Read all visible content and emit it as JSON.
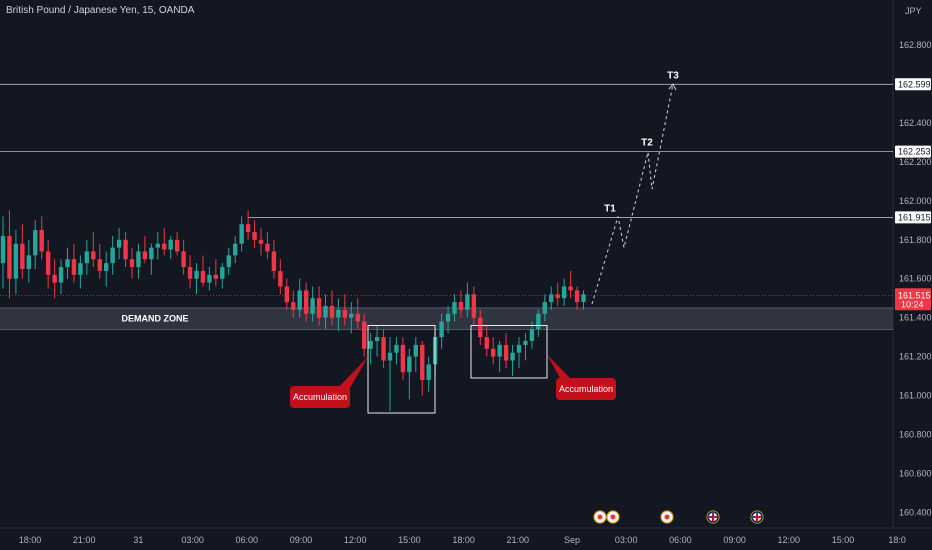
{
  "header": {
    "symbol_line": "British Pound / Japanese Yen, 15, OANDA"
  },
  "chart_data": {
    "type": "candlestick",
    "title": "British Pound / Japanese Yen, 15, OANDA",
    "currency_label": "JPY",
    "y_ticks": [
      "162.800",
      "162.600",
      "162.400",
      "162.200",
      "162.000",
      "161.800",
      "161.600",
      "161.400",
      "161.200",
      "161.000",
      "160.800",
      "160.600",
      "160.400"
    ],
    "y_min": 160.35,
    "y_max": 162.95,
    "x_ticks": [
      "18:00",
      "21:00",
      "31",
      "03:00",
      "06:00",
      "09:00",
      "12:00",
      "15:00",
      "18:00",
      "21:00",
      "Sep",
      "03:00",
      "06:00",
      "09:00",
      "12:00",
      "15:00",
      "18:0"
    ],
    "levels": [
      {
        "label": "162.599",
        "value": 162.599
      },
      {
        "label": "162.253",
        "value": 162.253
      },
      {
        "label": "161.915",
        "value": 161.915
      }
    ],
    "current_price": {
      "label": "161.515",
      "value": 161.515,
      "countdown": "10:24",
      "color": "#f23645"
    },
    "demand_zone": {
      "label": "DEMAND ZONE",
      "top": 161.45,
      "bottom": 161.34
    },
    "targets": [
      {
        "label": "T1",
        "value": 161.915
      },
      {
        "label": "T2",
        "value": 162.253
      },
      {
        "label": "T3",
        "value": 162.599
      }
    ],
    "projection_path": [
      161.47,
      161.92,
      161.76,
      162.25,
      162.06,
      162.6
    ],
    "accumulations": [
      {
        "label": "Accumulation",
        "box_top": 161.36,
        "box_bottom": 160.91
      },
      {
        "label": "Accumulation",
        "box_top": 161.36,
        "box_bottom": 161.09
      }
    ],
    "candles_ohlc": [
      [
        161.68,
        161.92,
        161.55,
        161.82
      ],
      [
        161.82,
        161.95,
        161.5,
        161.6
      ],
      [
        161.6,
        161.85,
        161.52,
        161.78
      ],
      [
        161.78,
        161.88,
        161.6,
        161.65
      ],
      [
        161.65,
        161.8,
        161.58,
        161.72
      ],
      [
        161.72,
        161.9,
        161.65,
        161.85
      ],
      [
        161.85,
        161.92,
        161.7,
        161.74
      ],
      [
        161.74,
        161.8,
        161.55,
        161.62
      ],
      [
        161.62,
        161.7,
        161.5,
        161.58
      ],
      [
        161.58,
        161.7,
        161.52,
        161.66
      ],
      [
        161.66,
        161.76,
        161.6,
        161.7
      ],
      [
        161.7,
        161.78,
        161.58,
        161.62
      ],
      [
        161.62,
        161.72,
        161.55,
        161.68
      ],
      [
        161.68,
        161.8,
        161.62,
        161.74
      ],
      [
        161.74,
        161.84,
        161.66,
        161.7
      ],
      [
        161.7,
        161.78,
        161.6,
        161.64
      ],
      [
        161.64,
        161.74,
        161.56,
        161.68
      ],
      [
        161.68,
        161.82,
        161.62,
        161.76
      ],
      [
        161.76,
        161.86,
        161.7,
        161.8
      ],
      [
        161.8,
        161.84,
        161.66,
        161.7
      ],
      [
        161.7,
        161.76,
        161.6,
        161.66
      ],
      [
        161.66,
        161.78,
        161.6,
        161.74
      ],
      [
        161.74,
        161.82,
        161.68,
        161.7
      ],
      [
        161.7,
        161.78,
        161.62,
        161.76
      ],
      [
        161.76,
        161.84,
        161.7,
        161.78
      ],
      [
        161.78,
        161.86,
        161.72,
        161.75
      ],
      [
        161.75,
        161.82,
        161.7,
        161.8
      ],
      [
        161.8,
        161.84,
        161.72,
        161.74
      ],
      [
        161.74,
        161.8,
        161.62,
        161.66
      ],
      [
        161.66,
        161.72,
        161.55,
        161.6
      ],
      [
        161.6,
        161.68,
        161.52,
        161.64
      ],
      [
        161.64,
        161.72,
        161.56,
        161.58
      ],
      [
        161.58,
        161.66,
        161.54,
        161.62
      ],
      [
        161.62,
        161.7,
        161.56,
        161.6
      ],
      [
        161.6,
        161.68,
        161.55,
        161.66
      ],
      [
        161.66,
        161.76,
        161.62,
        161.72
      ],
      [
        161.72,
        161.82,
        161.68,
        161.78
      ],
      [
        161.78,
        161.92,
        161.74,
        161.88
      ],
      [
        161.88,
        161.95,
        161.8,
        161.84
      ],
      [
        161.84,
        161.9,
        161.76,
        161.8
      ],
      [
        161.8,
        161.86,
        161.72,
        161.78
      ],
      [
        161.78,
        161.84,
        161.7,
        161.74
      ],
      [
        161.74,
        161.8,
        161.6,
        161.64
      ],
      [
        161.64,
        161.7,
        161.52,
        161.56
      ],
      [
        161.56,
        161.6,
        161.44,
        161.48
      ],
      [
        161.48,
        161.54,
        161.4,
        161.44
      ],
      [
        161.44,
        161.6,
        161.4,
        161.54
      ],
      [
        161.54,
        161.58,
        161.38,
        161.42
      ],
      [
        161.42,
        161.56,
        161.38,
        161.5
      ],
      [
        161.5,
        161.56,
        161.36,
        161.4
      ],
      [
        161.4,
        161.52,
        161.34,
        161.46
      ],
      [
        161.46,
        161.54,
        161.36,
        161.4
      ],
      [
        161.4,
        161.5,
        161.33,
        161.44
      ],
      [
        161.44,
        161.52,
        161.36,
        161.4
      ],
      [
        161.4,
        161.48,
        161.32,
        161.42
      ],
      [
        161.42,
        161.5,
        161.34,
        161.38
      ],
      [
        161.38,
        161.42,
        161.2,
        161.24
      ],
      [
        161.24,
        161.32,
        161.16,
        161.28
      ],
      [
        161.28,
        161.36,
        161.2,
        161.3
      ],
      [
        161.3,
        161.34,
        161.14,
        161.18
      ],
      [
        161.18,
        161.3,
        160.92,
        161.22
      ],
      [
        161.22,
        161.3,
        161.16,
        161.26
      ],
      [
        161.26,
        161.3,
        161.08,
        161.12
      ],
      [
        161.12,
        161.24,
        160.98,
        161.2
      ],
      [
        161.2,
        161.3,
        161.12,
        161.26
      ],
      [
        161.26,
        161.28,
        161.0,
        161.08
      ],
      [
        161.08,
        161.2,
        161.02,
        161.16
      ],
      [
        161.16,
        161.34,
        161.1,
        161.3
      ],
      [
        161.3,
        161.42,
        161.24,
        161.38
      ],
      [
        161.38,
        161.46,
        161.32,
        161.42
      ],
      [
        161.42,
        161.52,
        161.38,
        161.48
      ],
      [
        161.48,
        161.54,
        161.4,
        161.44
      ],
      [
        161.44,
        161.58,
        161.4,
        161.52
      ],
      [
        161.52,
        161.56,
        161.36,
        161.4
      ],
      [
        161.4,
        161.44,
        161.26,
        161.3
      ],
      [
        161.3,
        161.36,
        161.2,
        161.24
      ],
      [
        161.24,
        161.3,
        161.16,
        161.2
      ],
      [
        161.2,
        161.28,
        161.12,
        161.26
      ],
      [
        161.26,
        161.32,
        161.14,
        161.18
      ],
      [
        161.18,
        161.26,
        161.1,
        161.22
      ],
      [
        161.22,
        161.3,
        161.14,
        161.26
      ],
      [
        161.26,
        161.32,
        161.18,
        161.28
      ],
      [
        161.28,
        161.38,
        161.24,
        161.34
      ],
      [
        161.34,
        161.44,
        161.3,
        161.42
      ],
      [
        161.42,
        161.52,
        161.38,
        161.48
      ],
      [
        161.48,
        161.56,
        161.44,
        161.52
      ],
      [
        161.52,
        161.58,
        161.46,
        161.5
      ],
      [
        161.5,
        161.6,
        161.46,
        161.56
      ],
      [
        161.56,
        161.64,
        161.5,
        161.54
      ],
      [
        161.54,
        161.56,
        161.44,
        161.48
      ],
      [
        161.48,
        161.54,
        161.44,
        161.52
      ]
    ],
    "event_markers": [
      "event-icon",
      "event-icon",
      "event-icon",
      "uk-flag-icon",
      "uk-flag-icon"
    ],
    "colors": {
      "up": "#26a69a",
      "down": "#f23645",
      "background": "#131722",
      "label": "#c2111b"
    }
  }
}
